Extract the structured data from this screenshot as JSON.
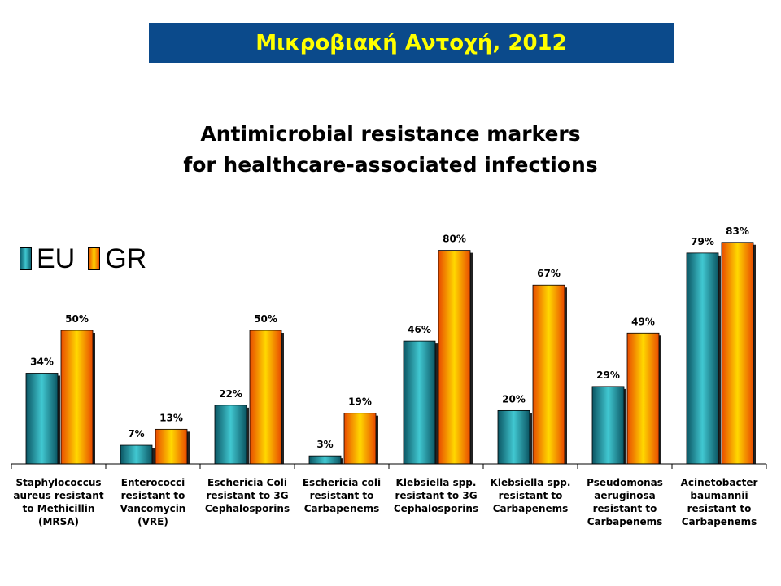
{
  "banner": {
    "title": "Μικροβιακή Αντοχή, 2012"
  },
  "legend": {
    "items": [
      "EU",
      "GR"
    ]
  },
  "colors": {
    "banner_bg": "#0b4a8b",
    "banner_text": "#ffff00",
    "eu": "#1f9aa8",
    "gr": "#ff9a00"
  },
  "chart_data": {
    "type": "bar",
    "title": [
      "Antimicrobial resistance markers",
      "for healthcare-associated infections"
    ],
    "xlabel": "",
    "ylabel": "",
    "ylim": [
      0,
      100
    ],
    "grid": false,
    "legend_position": "top-left",
    "categories": [
      [
        "Staphylococcus",
        "aureus resistant",
        "to Methicillin",
        "(MRSA)"
      ],
      [
        "Enterococci",
        "resistant to",
        "Vancomycin",
        "(VRE)"
      ],
      [
        "Eschericia Coli",
        "resistant to 3G",
        "Cephalosporins"
      ],
      [
        "Eschericia coli",
        "resistant to",
        "Carbapenems"
      ],
      [
        "Klebsiella spp.",
        "resistant to 3G",
        "Cephalosporins"
      ],
      [
        "Klebsiella spp.",
        "resistant to",
        "Carbapenems"
      ],
      [
        "Pseudomonas",
        "aeruginosa",
        "resistant to",
        "Carbapenems"
      ],
      [
        "Acinetobacter",
        "baumannii",
        "resistant to",
        "Carbapenems"
      ]
    ],
    "series": [
      {
        "name": "EU",
        "values": [
          34,
          7,
          22,
          3,
          46,
          20,
          29,
          79
        ],
        "labels": [
          "34%",
          "7%",
          "22%",
          "3%",
          "46%",
          "20%",
          "29%",
          "79%"
        ]
      },
      {
        "name": "GR",
        "values": [
          50,
          13,
          50,
          19,
          80,
          67,
          49,
          83
        ],
        "labels": [
          "50%",
          "13%",
          "50%",
          "19%",
          "80%",
          "67%",
          "49%",
          "83%"
        ]
      }
    ]
  }
}
